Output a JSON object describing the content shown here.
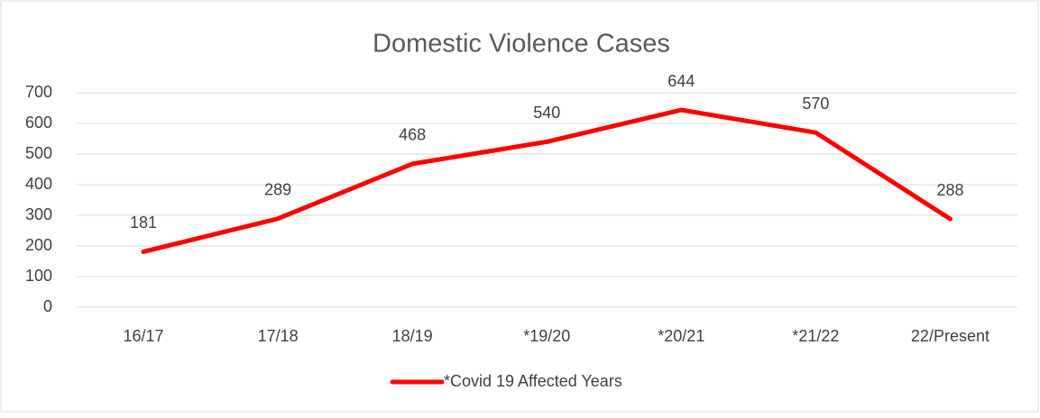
{
  "chart_data": {
    "type": "line",
    "title": "Domestic Violence Cases",
    "categories": [
      "16/17",
      "17/18",
      "18/19",
      "*19/20",
      "*20/21",
      "*21/22",
      "22/Present"
    ],
    "series": [
      {
        "name": "*Covid 19 Affected Years",
        "color": "#ff0000",
        "values": [
          181,
          289,
          468,
          540,
          644,
          570,
          288
        ]
      }
    ],
    "ylim": [
      0,
      700
    ],
    "yticks": [
      0,
      100,
      200,
      300,
      400,
      500,
      600,
      700
    ],
    "grid": true,
    "legend": "bottom"
  }
}
